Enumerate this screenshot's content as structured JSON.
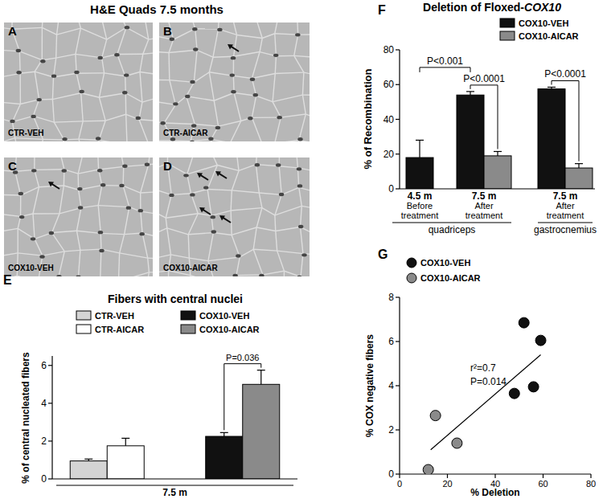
{
  "figure": {
    "title": "H&E Quads 7.5 months",
    "panels": [
      {
        "letter": "A",
        "label": "CTR-VEH"
      },
      {
        "letter": "B",
        "label": "CTR-AICAR"
      },
      {
        "letter": "C",
        "label": "COX10-VEH"
      },
      {
        "letter": "D",
        "label": "COX10-AICAR"
      }
    ]
  },
  "chart_data": [
    {
      "panel_label": "E",
      "type": "bar",
      "title": "Fibers with central nuclei",
      "y_label": "% of central nucleated fibers",
      "x_label": "7.5 m",
      "categories": [
        null,
        null
      ],
      "series": [
        {
          "name": "CTR-VEH",
          "color": "#d4d4d4",
          "values": [
            0.95,
            null
          ],
          "errors": [
            0.1,
            null
          ]
        },
        {
          "name": "CTR-AICAR",
          "color": "#ffffff",
          "values": [
            1.75,
            null
          ],
          "errors": [
            0.4,
            null
          ]
        },
        {
          "name": "COX10-VEH",
          "color": "#111111",
          "values": [
            null,
            2.25
          ],
          "errors": [
            null,
            0.2
          ]
        },
        {
          "name": "COX10-AICAR",
          "color": "#8a8a8a",
          "values": [
            null,
            5.0
          ],
          "errors": [
            null,
            0.75
          ]
        }
      ],
      "ylim": [
        0,
        6.5
      ],
      "yticks": [
        0,
        2,
        4,
        6
      ],
      "legend": "top",
      "annotations": [
        "P=0.036"
      ]
    },
    {
      "panel_label": "F",
      "type": "bar",
      "title": "Deletion of Floxed-COX10",
      "y_label": "% of Recombination",
      "categories": [
        "4.5 m\nBefore\ntreatment",
        "7.5 m\nAfter\ntreatment",
        "7.5 m\nAfter\ntreatment"
      ],
      "category_groups": [
        "quadriceps",
        "quadriceps",
        "gastrocnemius"
      ],
      "series": [
        {
          "name": "COX10-VEH",
          "color": "#111111",
          "values": [
            18,
            54,
            57.5
          ],
          "errors": [
            10,
            2,
            1
          ]
        },
        {
          "name": "COX10-AICAR",
          "color": "#8a8a8a",
          "values": [
            null,
            19,
            12
          ],
          "errors": [
            null,
            2.5,
            2.5
          ]
        }
      ],
      "ylim": [
        0,
        80
      ],
      "yticks": [
        0,
        20,
        40,
        60,
        80
      ],
      "legend": "top-right",
      "annotations": [
        "P<0.001",
        "P<0.0001",
        "P<0.0001"
      ]
    },
    {
      "panel_label": "G",
      "type": "scatter",
      "x_label": "% Deletion",
      "y_label": "% COX negative fibers",
      "series": [
        {
          "name": "COX10-VEH",
          "color": "#111111",
          "marker": "circle",
          "x": [
            52,
            59,
            48,
            56
          ],
          "values": [
            6.85,
            6.05,
            3.65,
            3.95
          ]
        },
        {
          "name": "COX10-AICAR",
          "color": "#8a8a8a",
          "marker": "circle",
          "x": [
            12,
            15,
            24
          ],
          "values": [
            0.2,
            2.65,
            1.4
          ]
        }
      ],
      "trend_line": {
        "x": [
          13,
          59
        ],
        "values": [
          1.1,
          5.4
        ]
      },
      "xlim": [
        0,
        80
      ],
      "xticks": [
        0,
        20,
        40,
        60,
        80
      ],
      "ylim": [
        0,
        8
      ],
      "yticks": [
        0,
        2,
        4,
        6,
        8
      ],
      "legend": "top-left",
      "annotations": [
        "r²=0.7",
        "P=0.014"
      ]
    }
  ]
}
